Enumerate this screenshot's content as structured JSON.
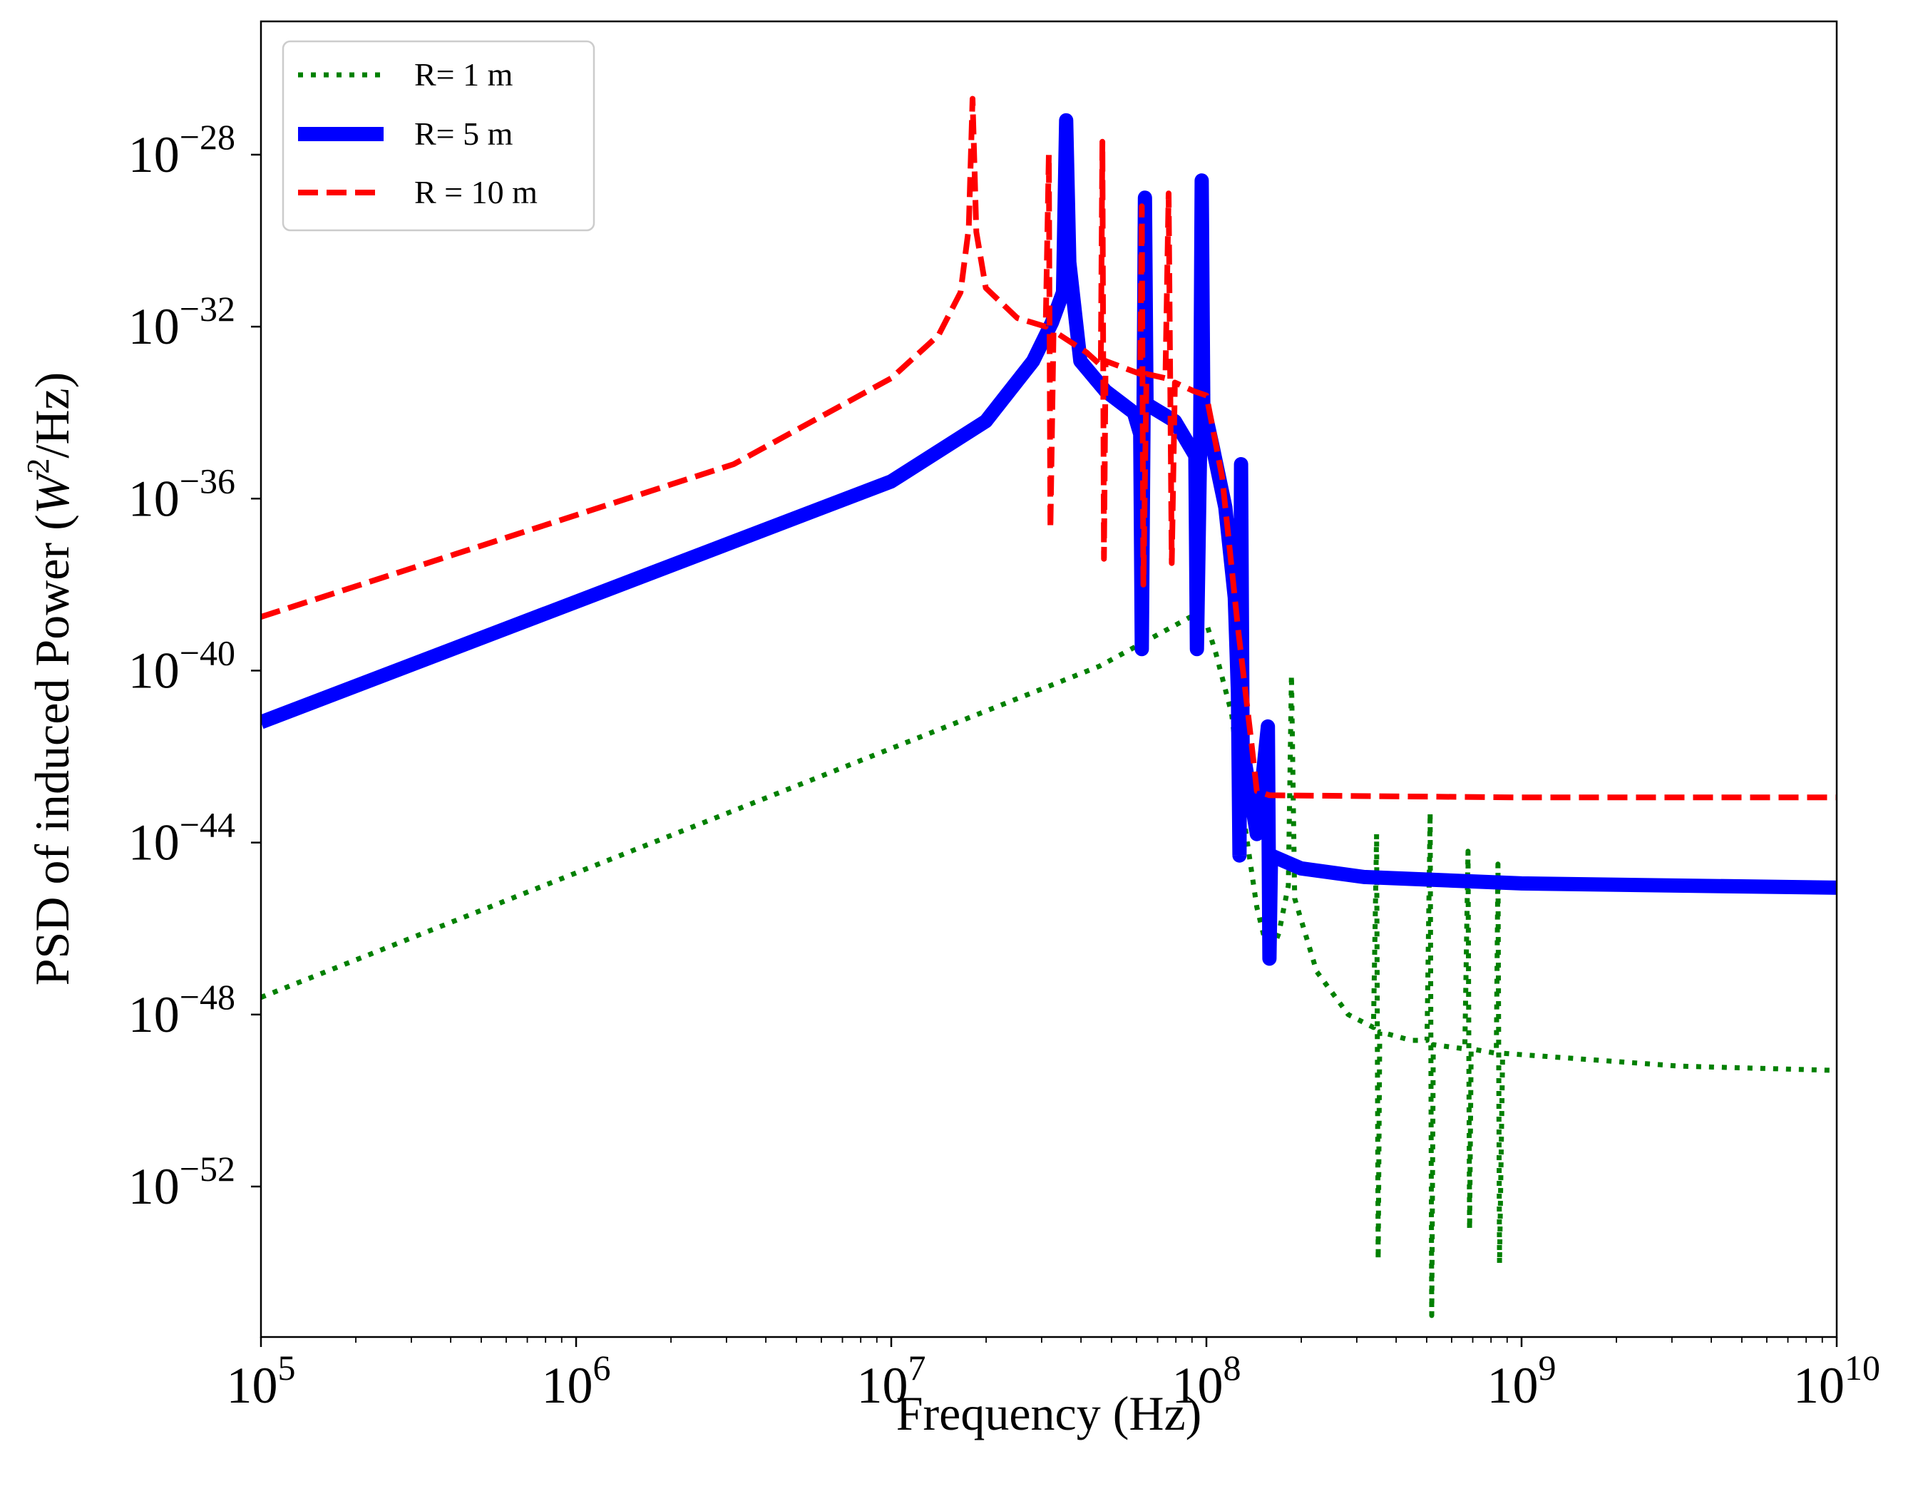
{
  "chart_data": {
    "type": "line",
    "title": "",
    "xlabel": "Frequency (Hz)",
    "ylabel_parts": {
      "before": "PSD of induced Power (",
      "var": "W",
      "exp": "2",
      "after": "/Hz)"
    },
    "xscale": "log",
    "yscale": "log",
    "xlim": [
      100000,
      10000000000
    ],
    "ylim_log10": [
      -55.5,
      -24.9
    ],
    "x_tick_log10": [
      5,
      6,
      7,
      8,
      9,
      10
    ],
    "x_tick_labels": [
      {
        "base": "10",
        "exp": "5"
      },
      {
        "base": "10",
        "exp": "6"
      },
      {
        "base": "10",
        "exp": "7"
      },
      {
        "base": "10",
        "exp": "8"
      },
      {
        "base": "10",
        "exp": "9"
      },
      {
        "base": "10",
        "exp": "10"
      }
    ],
    "y_tick_log10": [
      -28,
      -32,
      -36,
      -40,
      -44,
      -48,
      -52
    ],
    "y_tick_labels": [
      {
        "base": "10",
        "exp": "−28"
      },
      {
        "base": "10",
        "exp": "−32"
      },
      {
        "base": "10",
        "exp": "−36"
      },
      {
        "base": "10",
        "exp": "−40"
      },
      {
        "base": "10",
        "exp": "−44"
      },
      {
        "base": "10",
        "exp": "−48"
      },
      {
        "base": "10",
        "exp": "−52"
      }
    ],
    "grid": false,
    "legend_position": "top-left",
    "series": [
      {
        "name": "R= 1 m",
        "color": "#008000",
        "style": "dotted",
        "points_log10": [
          [
            5,
            -47.6
          ],
          [
            7.66,
            -39.9
          ],
          [
            7.95,
            -38.75
          ],
          [
            8.0,
            -38.9
          ],
          [
            8.03,
            -39.6
          ],
          [
            8.08,
            -41.0
          ],
          [
            8.12,
            -43.5
          ],
          [
            8.16,
            -45.5
          ],
          [
            8.2,
            -46.7
          ],
          [
            8.23,
            -46.1
          ],
          [
            8.26,
            -45.0
          ],
          [
            8.27,
            -40.1
          ],
          [
            8.28,
            -45.3
          ],
          [
            8.35,
            -47.0
          ],
          [
            8.45,
            -48.0
          ],
          [
            8.53,
            -48.3
          ],
          [
            8.54,
            -43.8
          ],
          [
            8.545,
            -53.7
          ],
          [
            8.55,
            -48.4
          ],
          [
            8.65,
            -48.6
          ],
          [
            8.7,
            -48.6
          ],
          [
            8.71,
            -43.3
          ],
          [
            8.715,
            -55.0
          ],
          [
            8.72,
            -48.7
          ],
          [
            8.82,
            -48.8
          ],
          [
            8.83,
            -44.2
          ],
          [
            8.835,
            -53.0
          ],
          [
            8.84,
            -48.8
          ],
          [
            8.92,
            -48.9
          ],
          [
            8.925,
            -44.5
          ],
          [
            8.93,
            -53.8
          ],
          [
            8.94,
            -48.9
          ],
          [
            9.5,
            -49.2
          ],
          [
            10,
            -49.3
          ]
        ]
      },
      {
        "name": "R= 5 m",
        "color": "#0000ff",
        "style": "solid",
        "points_log10": [
          [
            5,
            -41.2
          ],
          [
            7.0,
            -35.6
          ],
          [
            7.3,
            -34.2
          ],
          [
            7.45,
            -32.8
          ],
          [
            7.51,
            -31.9
          ],
          [
            7.545,
            -31.2
          ],
          [
            7.555,
            -27.2
          ],
          [
            7.565,
            -30.5
          ],
          [
            7.6,
            -32.8
          ],
          [
            7.68,
            -33.5
          ],
          [
            7.77,
            -34.0
          ],
          [
            7.79,
            -34.5
          ],
          [
            7.795,
            -39.5
          ],
          [
            7.8,
            -34.6
          ],
          [
            7.805,
            -29.0
          ],
          [
            7.81,
            -33.8
          ],
          [
            7.9,
            -34.2
          ],
          [
            7.965,
            -35.0
          ],
          [
            7.97,
            -39.5
          ],
          [
            7.98,
            -34.8
          ],
          [
            7.985,
            -28.6
          ],
          [
            7.99,
            -33.8
          ],
          [
            8.02,
            -34.8
          ],
          [
            8.06,
            -36.2
          ],
          [
            8.09,
            -38.3
          ],
          [
            8.1,
            -40.5
          ],
          [
            8.105,
            -44.3
          ],
          [
            8.11,
            -35.2
          ],
          [
            8.115,
            -41.8
          ],
          [
            8.16,
            -43.8
          ],
          [
            8.195,
            -41.3
          ],
          [
            8.2,
            -46.7
          ],
          [
            8.205,
            -44.3
          ],
          [
            8.3,
            -44.6
          ],
          [
            8.5,
            -44.8
          ],
          [
            9.0,
            -44.95
          ],
          [
            10,
            -45.05
          ]
        ]
      },
      {
        "name": "R = 10 m",
        "color": "#ff0000",
        "style": "dashed",
        "points_log10": [
          [
            5,
            -38.75
          ],
          [
            6.5,
            -35.2
          ],
          [
            7.0,
            -33.2
          ],
          [
            7.15,
            -32.2
          ],
          [
            7.22,
            -31.2
          ],
          [
            7.246,
            -29.7
          ],
          [
            7.258,
            -26.7
          ],
          [
            7.27,
            -29.8
          ],
          [
            7.3,
            -31.1
          ],
          [
            7.4,
            -31.8
          ],
          [
            7.49,
            -32.0
          ],
          [
            7.5,
            -28.0
          ],
          [
            7.505,
            -36.7
          ],
          [
            7.515,
            -32.1
          ],
          [
            7.62,
            -32.6
          ],
          [
            7.665,
            -32.9
          ],
          [
            7.67,
            -27.7
          ],
          [
            7.675,
            -37.4
          ],
          [
            7.68,
            -32.8
          ],
          [
            7.79,
            -33.1
          ],
          [
            7.795,
            -29.2
          ],
          [
            7.8,
            -38.0
          ],
          [
            7.81,
            -33.1
          ],
          [
            7.87,
            -33.2
          ],
          [
            7.88,
            -28.9
          ],
          [
            7.89,
            -37.5
          ],
          [
            7.9,
            -33.3
          ],
          [
            7.96,
            -33.5
          ],
          [
            8.0,
            -33.6
          ],
          [
            8.05,
            -35.5
          ],
          [
            8.1,
            -39.0
          ],
          [
            8.14,
            -41.5
          ],
          [
            8.16,
            -42.8
          ],
          [
            8.2,
            -42.9
          ],
          [
            9.0,
            -42.95
          ],
          [
            10,
            -42.95
          ]
        ]
      }
    ]
  }
}
